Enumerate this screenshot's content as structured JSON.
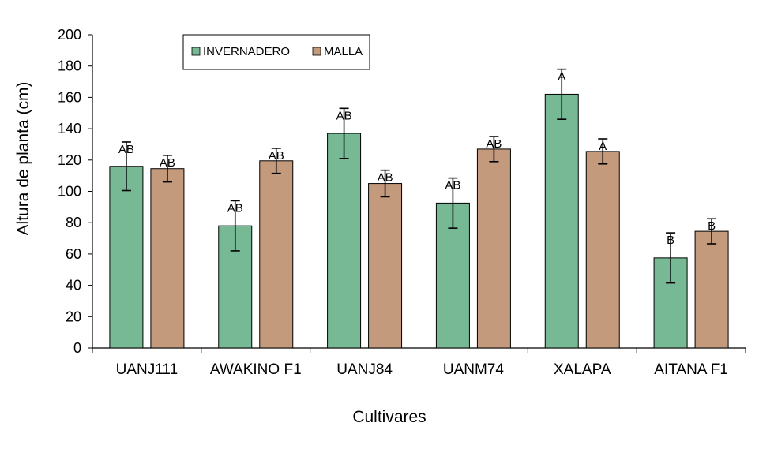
{
  "chart_data": {
    "type": "bar",
    "title": "",
    "xlabel": "Cultivares",
    "ylabel": "Altura de planta (cm)",
    "ylim": [
      0,
      200
    ],
    "yticks": [
      0,
      20,
      40,
      60,
      80,
      100,
      120,
      140,
      160,
      180,
      200
    ],
    "grid": false,
    "legend_position": "top-left",
    "categories": [
      "UANJ111",
      "AWAKINO F1",
      "UANJ84",
      "UANM74",
      "XALAPA",
      "AITANA F1"
    ],
    "series": [
      {
        "name": "INVERNADERO",
        "color": "#76B994",
        "values": [
          116,
          78,
          137,
          92.5,
          162,
          57.5
        ],
        "errors": [
          15.5,
          16,
          16,
          16,
          16,
          16
        ],
        "significance": [
          "AB",
          "AB",
          "AB",
          "AB",
          "A",
          "B"
        ]
      },
      {
        "name": "MALLA",
        "color": "#C49A7C",
        "values": [
          114.5,
          119.5,
          105,
          127,
          125.5,
          74.5
        ],
        "errors": [
          8.5,
          8,
          8.5,
          8,
          8,
          8
        ],
        "significance": [
          "AB",
          "AB",
          "AB",
          "AB",
          "A",
          "B"
        ]
      }
    ]
  }
}
